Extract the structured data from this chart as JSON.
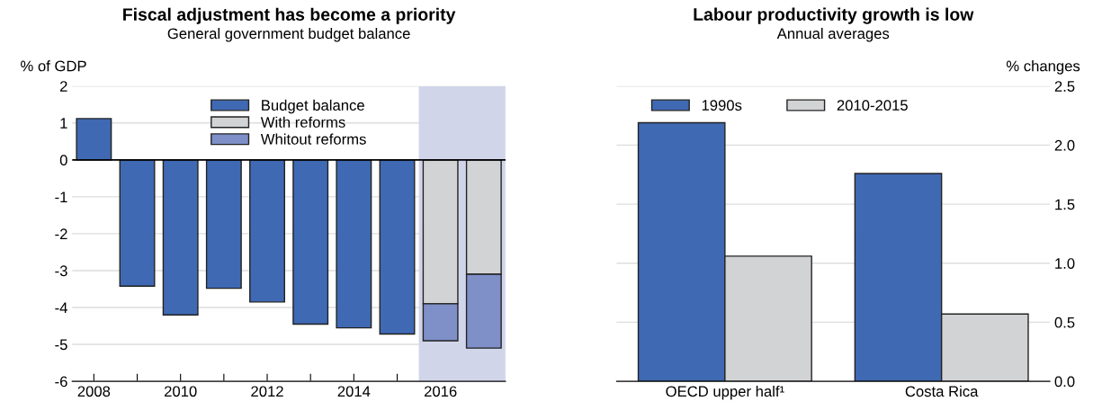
{
  "chart_data": [
    {
      "type": "bar",
      "title": "Fiscal adjustment has become a priority",
      "subtitle": "General government budget balance",
      "ylabel": "% of GDP",
      "stacked": true,
      "x": [
        2008,
        2009,
        2010,
        2011,
        2012,
        2013,
        2014,
        2015,
        2016,
        2017
      ],
      "series": [
        {
          "name": "Budget balance",
          "color": "#3f69b3",
          "values": [
            1.12,
            -3.42,
            -4.2,
            -3.48,
            -3.85,
            -4.45,
            -4.55,
            -4.72,
            null,
            null
          ]
        },
        {
          "name": "With reforms",
          "color": "#d2d3d5",
          "values": [
            null,
            null,
            null,
            null,
            null,
            null,
            null,
            null,
            -3.9,
            -3.1
          ]
        },
        {
          "name": "Whitout reforms",
          "color": "#7f8fc8",
          "values": [
            null,
            null,
            null,
            null,
            null,
            null,
            null,
            null,
            -1.0,
            -2.0
          ]
        }
      ],
      "xlim": [
        2007.5,
        2017.5
      ],
      "xticks": [
        2008,
        {
          "value": 2009,
          "label": null
        },
        2010,
        {
          "value": 2011,
          "label": null
        },
        2012,
        {
          "value": 2013,
          "label": null
        },
        2014,
        {
          "value": 2015,
          "label": null
        },
        2016,
        {
          "value": 2017,
          "label": null
        }
      ],
      "ylim": [
        -6,
        2
      ],
      "yticks": [
        -6,
        -5,
        -4,
        -3,
        -2,
        -1,
        0,
        1,
        2
      ],
      "bands": [
        {
          "axis": "x",
          "from": 2015.5,
          "to": 2017.5,
          "color": "#d0d5ea"
        }
      ],
      "ref_lines": [
        {
          "axis": "y",
          "value": 0,
          "color": "#000000"
        }
      ],
      "grid": "y",
      "legend": "top"
    },
    {
      "type": "bar",
      "title": "Labour productivity growth is low",
      "subtitle": "Annual averages",
      "ylabel": "% changes",
      "categories": [
        "OECD upper half¹",
        "Costa Rica"
      ],
      "series": [
        {
          "name": "1990s",
          "color": "#3f69b3",
          "values": [
            2.19,
            1.76
          ]
        },
        {
          "name": "2010-2015",
          "color": "#d2d3d5",
          "values": [
            1.06,
            0.57
          ]
        }
      ],
      "ylim": [
        0,
        2.5
      ],
      "yticks": [
        {
          "value": 0,
          "label": "0.0"
        },
        {
          "value": 0.5,
          "label": "0.5"
        },
        {
          "value": 1,
          "label": "1.0"
        },
        {
          "value": 1.5,
          "label": "1.5"
        },
        {
          "value": 2,
          "label": "2.0"
        },
        {
          "value": 2.5,
          "label": "2.5"
        }
      ],
      "grid": "y",
      "legend": "top left"
    }
  ]
}
